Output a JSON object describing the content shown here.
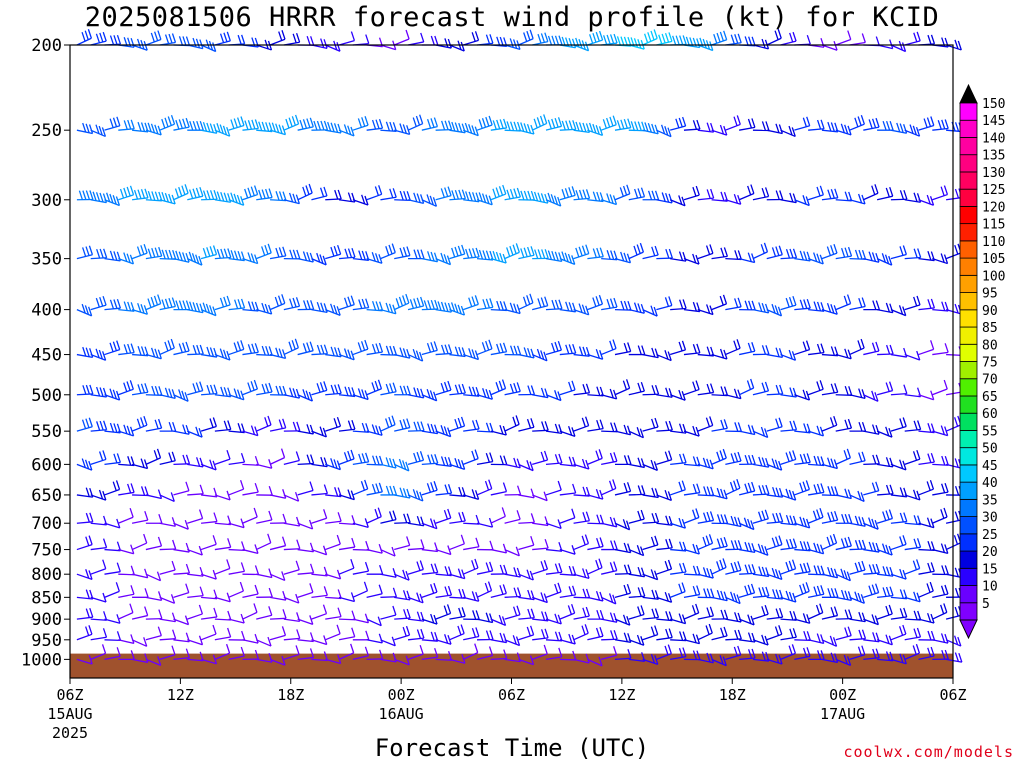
{
  "chart_data": {
    "type": "wind-barb-profile",
    "title": "2025081506 HRRR forecast wind profile (kt) for KCID",
    "xlabel": "Forecast Time (UTC)",
    "ylabel": "",
    "y_scale": "log-pressure",
    "y_ticks": [
      "200",
      "250",
      "300",
      "350",
      "400",
      "450",
      "500",
      "550",
      "600",
      "650",
      "700",
      "750",
      "800",
      "850",
      "900",
      "950",
      "1000"
    ],
    "y_values": [
      200,
      250,
      300,
      350,
      400,
      450,
      500,
      550,
      600,
      650,
      700,
      750,
      800,
      850,
      900,
      950,
      1000
    ],
    "ylim": [
      200,
      1050
    ],
    "x_ticks": [
      {
        "hour": 0,
        "label": "06Z",
        "date": "15AUG",
        "year": "2025"
      },
      {
        "hour": 6,
        "label": "12Z",
        "date": "",
        "year": ""
      },
      {
        "hour": 12,
        "label": "18Z",
        "date": "",
        "year": ""
      },
      {
        "hour": 18,
        "label": "00Z",
        "date": "16AUG",
        "year": ""
      },
      {
        "hour": 24,
        "label": "06Z",
        "date": "",
        "year": ""
      },
      {
        "hour": 30,
        "label": "12Z",
        "date": "",
        "year": ""
      },
      {
        "hour": 36,
        "label": "18Z",
        "date": "",
        "year": ""
      },
      {
        "hour": 42,
        "label": "00Z",
        "date": "17AUG",
        "year": ""
      },
      {
        "hour": 48,
        "label": "06Z",
        "date": "",
        "year": ""
      }
    ],
    "xlim": [
      0,
      48
    ],
    "surface_pressure": 985,
    "surface_color": "#a0522d",
    "colorbar": {
      "labels": [
        "5",
        "10",
        "15",
        "20",
        "25",
        "30",
        "35",
        "40",
        "45",
        "50",
        "55",
        "60",
        "65",
        "70",
        "75",
        "80",
        "85",
        "90",
        "95",
        "100",
        "105",
        "110",
        "115",
        "120",
        "125",
        "130",
        "135",
        "140",
        "145",
        "150"
      ],
      "colors": [
        "#8000ff",
        "#6a00ff",
        "#2a00ff",
        "#0000e0",
        "#0030ff",
        "#0050ff",
        "#0078ff",
        "#00a0ff",
        "#00c8ff",
        "#00e8e0",
        "#00f0b0",
        "#00e060",
        "#20e020",
        "#50f000",
        "#a0f000",
        "#e0ff00",
        "#f0f000",
        "#ffe000",
        "#ffc000",
        "#ffa000",
        "#ff8000",
        "#ff6000",
        "#ff2000",
        "#ff0000",
        "#ff0040",
        "#ff0060",
        "#ff0080",
        "#ff00a0",
        "#ff00c8",
        "#ff00ff"
      ],
      "top_arrow_color": "#000000",
      "bottom_arrow_color": "#8000ff"
    },
    "wind_profile": [
      {
        "p": 200,
        "speeds": [
          25,
          30,
          28,
          20,
          15,
          10,
          20,
          30,
          40,
          45,
          40,
          20,
          10,
          15,
          20
        ]
      },
      {
        "p": 250,
        "speeds": [
          30,
          35,
          38,
          40,
          35,
          30,
          35,
          40,
          40,
          38,
          15,
          20,
          25,
          28,
          25
        ]
      },
      {
        "p": 300,
        "speeds": [
          35,
          40,
          42,
          35,
          20,
          25,
          35,
          40,
          35,
          30,
          15,
          20,
          25,
          20,
          15
        ]
      },
      {
        "p": 350,
        "speeds": [
          30,
          35,
          38,
          32,
          25,
          30,
          35,
          40,
          35,
          25,
          20,
          25,
          30,
          25,
          20
        ]
      },
      {
        "p": 400,
        "speeds": [
          30,
          35,
          35,
          30,
          30,
          35,
          35,
          30,
          30,
          25,
          20,
          30,
          25,
          20,
          15
        ]
      },
      {
        "p": 450,
        "speeds": [
          25,
          30,
          32,
          30,
          28,
          30,
          30,
          28,
          25,
          20,
          20,
          25,
          20,
          15,
          10
        ]
      },
      {
        "p": 500,
        "speeds": [
          25,
          28,
          30,
          28,
          25,
          28,
          25,
          25,
          22,
          20,
          18,
          25,
          20,
          15,
          10
        ]
      },
      {
        "p": 550,
        "speeds": [
          28,
          25,
          22,
          15,
          20,
          30,
          25,
          20,
          18,
          20,
          22,
          25,
          22,
          20,
          15
        ]
      },
      {
        "p": 600,
        "speeds": [
          25,
          20,
          15,
          10,
          25,
          35,
          25,
          15,
          15,
          20,
          25,
          25,
          25,
          20,
          15
        ]
      },
      {
        "p": 650,
        "speeds": [
          20,
          15,
          10,
          10,
          15,
          35,
          20,
          10,
          15,
          20,
          25,
          25,
          25,
          22,
          20
        ]
      },
      {
        "p": 700,
        "speeds": [
          15,
          10,
          8,
          10,
          10,
          20,
          15,
          10,
          15,
          20,
          25,
          25,
          25,
          25,
          20
        ]
      },
      {
        "p": 750,
        "speeds": [
          15,
          10,
          8,
          8,
          10,
          10,
          10,
          10,
          15,
          20,
          25,
          25,
          25,
          25,
          20
        ]
      },
      {
        "p": 800,
        "speeds": [
          15,
          10,
          8,
          10,
          12,
          15,
          15,
          15,
          15,
          20,
          25,
          25,
          25,
          25,
          20
        ]
      },
      {
        "p": 850,
        "speeds": [
          15,
          10,
          8,
          10,
          12,
          15,
          15,
          15,
          15,
          20,
          25,
          25,
          25,
          25,
          20
        ]
      },
      {
        "p": 900,
        "speeds": [
          15,
          10,
          10,
          10,
          10,
          15,
          20,
          15,
          15,
          20,
          20,
          20,
          20,
          20,
          20
        ]
      },
      {
        "p": 950,
        "speeds": [
          15,
          10,
          10,
          10,
          10,
          15,
          15,
          15,
          15,
          20,
          20,
          20,
          15,
          15,
          15
        ]
      },
      {
        "p": 1000,
        "speeds": [
          10,
          10,
          10,
          10,
          10,
          10,
          10,
          10,
          10,
          15,
          15,
          15,
          15,
          15,
          15
        ]
      }
    ],
    "grid": false,
    "legend": "right"
  },
  "credit": "coolwx.com/models"
}
